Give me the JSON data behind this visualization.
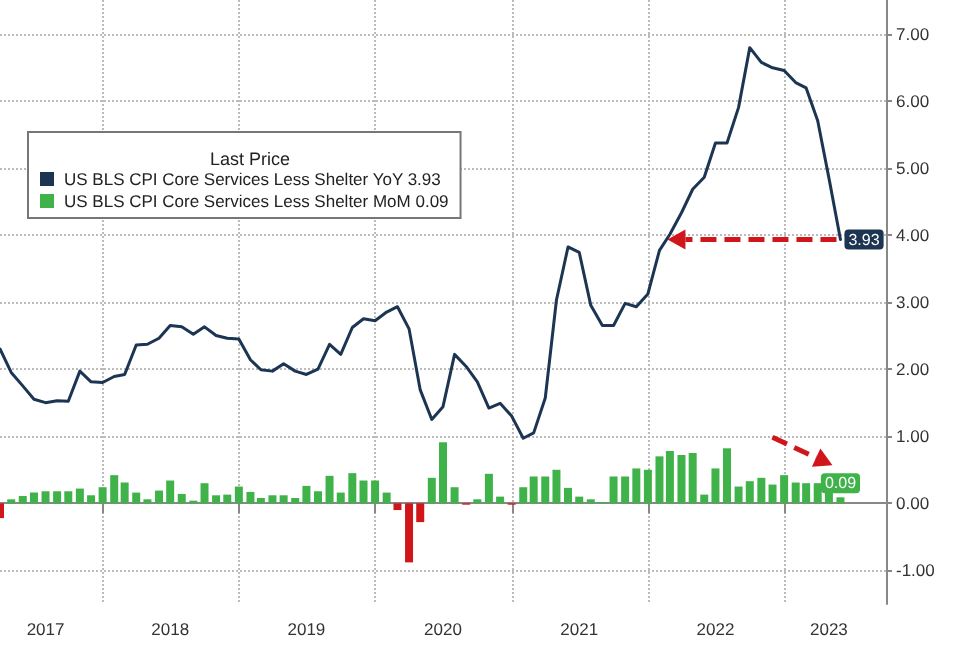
{
  "chart_data": {
    "type": "line",
    "legend_title": "Last Price",
    "x": [
      "2017-04",
      "2017-05",
      "2017-06",
      "2017-07",
      "2017-08",
      "2017-09",
      "2017-10",
      "2017-11",
      "2017-12",
      "2018-01",
      "2018-02",
      "2018-03",
      "2018-04",
      "2018-05",
      "2018-06",
      "2018-07",
      "2018-08",
      "2018-09",
      "2018-10",
      "2018-11",
      "2018-12",
      "2019-01",
      "2019-02",
      "2019-03",
      "2019-04",
      "2019-05",
      "2019-06",
      "2019-07",
      "2019-08",
      "2019-09",
      "2019-10",
      "2019-11",
      "2019-12",
      "2020-01",
      "2020-02",
      "2020-03",
      "2020-04",
      "2020-05",
      "2020-06",
      "2020-07",
      "2020-08",
      "2020-09",
      "2020-10",
      "2020-11",
      "2020-12",
      "2021-01",
      "2021-02",
      "2021-03",
      "2021-04",
      "2021-05",
      "2021-06",
      "2021-07",
      "2021-08",
      "2021-09",
      "2021-10",
      "2021-11",
      "2021-12",
      "2022-01",
      "2022-02",
      "2022-03",
      "2022-04",
      "2022-05",
      "2022-06",
      "2022-07",
      "2022-08",
      "2022-09",
      "2022-10",
      "2022-11",
      "2022-12",
      "2023-01",
      "2023-02",
      "2023-03",
      "2023-04",
      "2023-05",
      "2023-06"
    ],
    "series": [
      {
        "name": "US BLS CPI Core Services Less Shelter YoY 3.93",
        "color": "#1c3553",
        "values": [
          2.3,
          1.95,
          1.75,
          1.55,
          1.5,
          1.53,
          1.52,
          1.97,
          1.81,
          1.8,
          1.89,
          1.92,
          2.36,
          2.37,
          2.46,
          2.65,
          2.63,
          2.52,
          2.63,
          2.5,
          2.46,
          2.45,
          2.14,
          1.99,
          1.97,
          2.08,
          1.97,
          1.92,
          2.0,
          2.37,
          2.22,
          2.62,
          2.75,
          2.72,
          2.85,
          2.93,
          2.6,
          1.69,
          1.25,
          1.44,
          2.22,
          2.04,
          1.81,
          1.42,
          1.49,
          1.3,
          0.97,
          1.05,
          1.57,
          3.03,
          3.82,
          3.74,
          2.95,
          2.65,
          2.65,
          2.98,
          2.93,
          3.12,
          3.77,
          4.01,
          4.33,
          4.68,
          4.86,
          5.37,
          5.37,
          5.9,
          6.79,
          6.57,
          6.49,
          6.45,
          6.27,
          6.19,
          5.7,
          4.85,
          3.93
        ],
        "value_labels": [
          null,
          null,
          null,
          null,
          null,
          null,
          null,
          null,
          null,
          null,
          null,
          null,
          null,
          null,
          null,
          null,
          null,
          null,
          null,
          null,
          null,
          null,
          null,
          null,
          null,
          null,
          null,
          null,
          null,
          null,
          null,
          null,
          null,
          null,
          null,
          null,
          null,
          null,
          null,
          null,
          null,
          null,
          null,
          null,
          null,
          null,
          null,
          null,
          null,
          null,
          null,
          null,
          null,
          null,
          null,
          null,
          null,
          null,
          null,
          null,
          null,
          null,
          null,
          null,
          null,
          null,
          null,
          null,
          null,
          null,
          null,
          null,
          null,
          null,
          "3.93"
        ]
      },
      {
        "name": "US BLS CPI Core Services Less Shelter MoM 0.09",
        "type": "bar",
        "color": "#3fb34a",
        "values": [
          -0.22,
          0.06,
          0.11,
          0.16,
          0.18,
          0.18,
          0.18,
          0.22,
          0.12,
          0.24,
          0.42,
          0.31,
          0.16,
          0.06,
          0.19,
          0.34,
          0.14,
          0.04,
          0.3,
          0.12,
          0.13,
          0.25,
          0.17,
          0.08,
          0.12,
          0.12,
          0.08,
          0.26,
          0.18,
          0.41,
          0.16,
          0.45,
          0.34,
          0.34,
          0.16,
          -0.1,
          -0.88,
          -0.28,
          0.38,
          0.91,
          0.24,
          -0.02,
          0.06,
          0.44,
          0.1,
          -0.02,
          0.24,
          0.4,
          0.4,
          0.5,
          0.23,
          0.1,
          0.06,
          0.02,
          0.4,
          0.4,
          0.52,
          0.5,
          0.7,
          0.78,
          0.72,
          0.75,
          0.13,
          0.52,
          0.82,
          0.25,
          0.33,
          0.38,
          0.28,
          0.42,
          0.31,
          0.3,
          0.3,
          0.2,
          0.09
        ],
        "colors": [
          "#d0161b",
          "#3fb34a",
          "#3fb34a",
          "#3fb34a",
          "#3fb34a",
          "#3fb34a",
          "#3fb34a",
          "#3fb34a",
          "#3fb34a",
          "#3fb34a",
          "#3fb34a",
          "#3fb34a",
          "#3fb34a",
          "#3fb34a",
          "#3fb34a",
          "#3fb34a",
          "#3fb34a",
          "#3fb34a",
          "#3fb34a",
          "#3fb34a",
          "#3fb34a",
          "#3fb34a",
          "#3fb34a",
          "#3fb34a",
          "#3fb34a",
          "#3fb34a",
          "#3fb34a",
          "#3fb34a",
          "#3fb34a",
          "#3fb34a",
          "#3fb34a",
          "#3fb34a",
          "#3fb34a",
          "#3fb34a",
          "#3fb34a",
          "#d0161b",
          "#d0161b",
          "#d0161b",
          "#3fb34a",
          "#3fb34a",
          "#3fb34a",
          "#d0161b",
          "#3fb34a",
          "#3fb34a",
          "#3fb34a",
          "#d0161b",
          "#3fb34a",
          "#3fb34a",
          "#3fb34a",
          "#3fb34a",
          "#3fb34a",
          "#3fb34a",
          "#3fb34a",
          "#3fb34a",
          "#3fb34a",
          "#3fb34a",
          "#3fb34a",
          "#3fb34a",
          "#3fb34a",
          "#3fb34a",
          "#3fb34a",
          "#3fb34a",
          "#3fb34a",
          "#3fb34a",
          "#3fb34a",
          "#3fb34a",
          "#3fb34a",
          "#3fb34a",
          "#3fb34a",
          "#3fb34a",
          "#3fb34a",
          "#3fb34a",
          "#3fb34a",
          "#3fb34a",
          "#3fb34a"
        ],
        "value_labels": [
          null,
          null,
          null,
          null,
          null,
          null,
          null,
          null,
          null,
          null,
          null,
          null,
          null,
          null,
          null,
          null,
          null,
          null,
          null,
          null,
          null,
          null,
          null,
          null,
          null,
          null,
          null,
          null,
          null,
          null,
          null,
          null,
          null,
          null,
          null,
          null,
          null,
          null,
          null,
          null,
          null,
          null,
          null,
          null,
          null,
          null,
          null,
          null,
          null,
          null,
          null,
          null,
          null,
          null,
          null,
          null,
          null,
          null,
          null,
          null,
          null,
          null,
          null,
          null,
          null,
          null,
          null,
          null,
          null,
          null,
          null,
          null,
          null,
          null,
          "0.09"
        ]
      }
    ],
    "xlim": [
      "2017-04",
      "2023-10"
    ],
    "xticks": [
      {
        "value": "2017-08",
        "label": "2017"
      },
      {
        "value": "2018-01",
        "label": null
      },
      {
        "value": "2018-07",
        "label": "2018"
      },
      {
        "value": "2019-01",
        "label": null
      },
      {
        "value": "2019-07",
        "label": "2019"
      },
      {
        "value": "2020-01",
        "label": null
      },
      {
        "value": "2020-07",
        "label": "2020"
      },
      {
        "value": "2021-01",
        "label": null
      },
      {
        "value": "2021-07",
        "label": "2021"
      },
      {
        "value": "2022-01",
        "label": null
      },
      {
        "value": "2022-07",
        "label": "2022"
      },
      {
        "value": "2023-01",
        "label": null
      },
      {
        "value": "2023-05",
        "label": "2023"
      }
    ],
    "ylim": [
      -1.5,
      7.5
    ],
    "yticks": [
      {
        "value": -1,
        "label": "-1.00"
      },
      {
        "value": 0,
        "label": "0.00"
      },
      {
        "value": 1,
        "label": "1.00"
      },
      {
        "value": 2,
        "label": "2.00"
      },
      {
        "value": 3,
        "label": "3.00"
      },
      {
        "value": 4,
        "label": "4.00"
      },
      {
        "value": 5,
        "label": "5.00"
      },
      {
        "value": 6,
        "label": "6.00"
      },
      {
        "value": 7,
        "label": "7.00"
      }
    ],
    "grid": true,
    "legend": "top left",
    "marker": "none",
    "line_style": "solid"
  }
}
